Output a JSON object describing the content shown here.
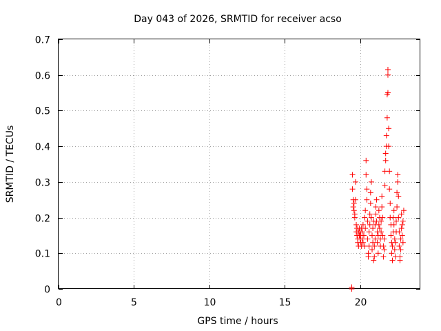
{
  "chart_data": {
    "type": "scatter",
    "title": "Day 043 of 2026, SRMTID for receiver acso",
    "xlabel": "GPS time / hours",
    "ylabel": "SRMTID / TECUs",
    "xlim": [
      0,
      24
    ],
    "ylim": [
      0,
      0.7
    ],
    "xticks": [
      0,
      5,
      10,
      15,
      20
    ],
    "yticks": [
      0,
      0.1,
      0.2,
      0.3,
      0.4,
      0.5,
      0.6,
      0.7
    ],
    "ytick_labels": [
      "0",
      "0.1",
      "0.2",
      "0.3",
      "0.4",
      "0.5",
      "0.6",
      "0.7"
    ],
    "grid": true,
    "marker": "plus",
    "color": "#ff0000",
    "series": [
      {
        "name": "SRMTID",
        "points": [
          [
            19.45,
            0.0
          ],
          [
            19.45,
            0.005
          ],
          [
            19.5,
            0.32
          ],
          [
            19.5,
            0.28
          ],
          [
            19.55,
            0.25
          ],
          [
            19.55,
            0.23
          ],
          [
            19.6,
            0.22
          ],
          [
            19.6,
            0.24
          ],
          [
            19.65,
            0.21
          ],
          [
            19.65,
            0.2
          ],
          [
            19.7,
            0.25
          ],
          [
            19.7,
            0.3
          ],
          [
            19.75,
            0.18
          ],
          [
            19.75,
            0.16
          ],
          [
            19.8,
            0.15
          ],
          [
            19.8,
            0.17
          ],
          [
            19.85,
            0.14
          ],
          [
            19.85,
            0.13
          ],
          [
            19.9,
            0.16
          ],
          [
            19.9,
            0.12
          ],
          [
            19.95,
            0.15
          ],
          [
            19.95,
            0.17
          ],
          [
            20.0,
            0.14
          ],
          [
            20.0,
            0.16
          ],
          [
            20.05,
            0.13
          ],
          [
            20.05,
            0.15
          ],
          [
            20.1,
            0.17
          ],
          [
            20.1,
            0.12
          ],
          [
            20.15,
            0.14
          ],
          [
            20.15,
            0.16
          ],
          [
            20.2,
            0.13
          ],
          [
            20.2,
            0.18
          ],
          [
            20.25,
            0.15
          ],
          [
            20.3,
            0.12
          ],
          [
            20.3,
            0.2
          ],
          [
            20.35,
            0.17
          ],
          [
            20.35,
            0.22
          ],
          [
            20.4,
            0.32
          ],
          [
            20.4,
            0.36
          ],
          [
            20.45,
            0.28
          ],
          [
            20.45,
            0.25
          ],
          [
            20.5,
            0.19
          ],
          [
            20.5,
            0.14
          ],
          [
            20.55,
            0.1
          ],
          [
            20.55,
            0.09
          ],
          [
            20.6,
            0.12
          ],
          [
            20.6,
            0.16
          ],
          [
            20.65,
            0.18
          ],
          [
            20.65,
            0.21
          ],
          [
            20.7,
            0.24
          ],
          [
            20.7,
            0.27
          ],
          [
            20.75,
            0.3
          ],
          [
            20.75,
            0.2
          ],
          [
            20.8,
            0.15
          ],
          [
            20.8,
            0.11
          ],
          [
            20.85,
            0.13
          ],
          [
            20.85,
            0.17
          ],
          [
            20.9,
            0.19
          ],
          [
            20.9,
            0.08
          ],
          [
            20.95,
            0.09
          ],
          [
            20.95,
            0.12
          ],
          [
            21.0,
            0.14
          ],
          [
            21.0,
            0.18
          ],
          [
            21.05,
            0.21
          ],
          [
            21.05,
            0.23
          ],
          [
            21.1,
            0.25
          ],
          [
            21.1,
            0.19
          ],
          [
            21.15,
            0.16
          ],
          [
            21.15,
            0.13
          ],
          [
            21.2,
            0.1
          ],
          [
            21.2,
            0.15
          ],
          [
            21.25,
            0.18
          ],
          [
            21.25,
            0.22
          ],
          [
            21.3,
            0.2
          ],
          [
            21.3,
            0.17
          ],
          [
            21.35,
            0.14
          ],
          [
            21.35,
            0.12
          ],
          [
            21.4,
            0.16
          ],
          [
            21.4,
            0.19
          ],
          [
            21.45,
            0.23
          ],
          [
            21.45,
            0.26
          ],
          [
            21.5,
            0.2
          ],
          [
            21.5,
            0.15
          ],
          [
            21.55,
            0.12
          ],
          [
            21.55,
            0.09
          ],
          [
            21.6,
            0.11
          ],
          [
            21.6,
            0.14
          ],
          [
            21.65,
            0.29
          ],
          [
            21.65,
            0.33
          ],
          [
            21.7,
            0.36
          ],
          [
            21.7,
            0.38
          ],
          [
            21.75,
            0.4
          ],
          [
            21.75,
            0.43
          ],
          [
            21.8,
            0.48
          ],
          [
            21.8,
            0.545
          ],
          [
            21.85,
            0.6
          ],
          [
            21.85,
            0.615
          ],
          [
            21.85,
            0.55
          ],
          [
            21.9,
            0.45
          ],
          [
            21.9,
            0.4
          ],
          [
            21.95,
            0.33
          ],
          [
            21.95,
            0.28
          ],
          [
            22.0,
            0.24
          ],
          [
            22.0,
            0.2
          ],
          [
            22.05,
            0.18
          ],
          [
            22.05,
            0.15
          ],
          [
            22.1,
            0.13
          ],
          [
            22.1,
            0.1
          ],
          [
            22.15,
            0.08
          ],
          [
            22.15,
            0.12
          ],
          [
            22.2,
            0.16
          ],
          [
            22.2,
            0.2
          ],
          [
            22.25,
            0.22
          ],
          [
            22.25,
            0.18
          ],
          [
            22.3,
            0.14
          ],
          [
            22.3,
            0.11
          ],
          [
            22.35,
            0.09
          ],
          [
            22.35,
            0.13
          ],
          [
            22.4,
            0.16
          ],
          [
            22.4,
            0.19
          ],
          [
            22.45,
            0.23
          ],
          [
            22.45,
            0.27
          ],
          [
            22.5,
            0.3
          ],
          [
            22.5,
            0.32
          ],
          [
            22.55,
            0.26
          ],
          [
            22.55,
            0.2
          ],
          [
            22.6,
            0.16
          ],
          [
            22.6,
            0.12
          ],
          [
            22.65,
            0.09
          ],
          [
            22.65,
            0.08
          ],
          [
            22.7,
            0.11
          ],
          [
            22.7,
            0.14
          ],
          [
            22.75,
            0.17
          ],
          [
            22.75,
            0.21
          ],
          [
            22.8,
            0.18
          ],
          [
            22.8,
            0.15
          ],
          [
            22.85,
            0.13
          ],
          [
            22.85,
            0.19
          ],
          [
            22.9,
            0.22
          ]
        ]
      }
    ]
  }
}
